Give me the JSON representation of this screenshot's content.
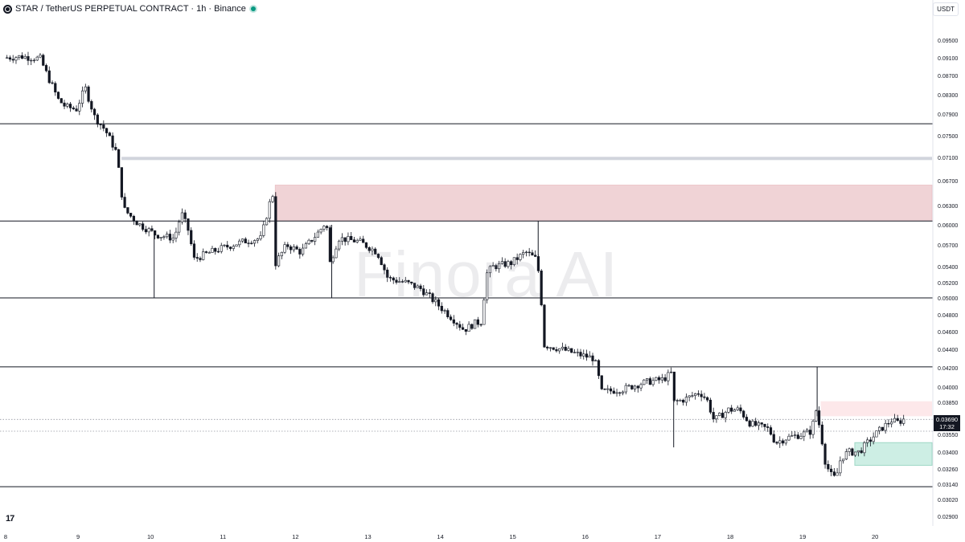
{
  "header": {
    "title": "STAR / TetherUS PERPETUAL CONTRACT · 1h · Binance"
  },
  "unit_button": "USDT",
  "watermark": "Finora AI",
  "logo_text": "17",
  "last_price": {
    "value": "0.03690",
    "countdown": "17:32"
  },
  "colors": {
    "up": "#131722",
    "down": "#131722",
    "supply_zone": "#f0d3d6",
    "light_supply_zone": "#fde8ea",
    "demand_zone": "#cdeee4",
    "demand_border": "#9fd8c6",
    "gray_band": "#d1d4dc",
    "live_dot": "#089981"
  },
  "chart_data": {
    "type": "candlestick",
    "title": "STAR / TetherUS PERPETUAL CONTRACT · 1h · Binance",
    "xlabel": "",
    "ylabel": "",
    "x_ticks": [
      "8",
      "9",
      "10",
      "11",
      "12",
      "13",
      "14",
      "15",
      "16",
      "17",
      "18",
      "19",
      "20"
    ],
    "y_ticks": [
      "0.09500",
      "0.09100",
      "0.08700",
      "0.08300",
      "0.07900",
      "0.07500",
      "0.07100",
      "0.06700",
      "0.06300",
      "0.06000",
      "0.05700",
      "0.05400",
      "0.05200",
      "0.05000",
      "0.04800",
      "0.04600",
      "0.04400",
      "0.04200",
      "0.04000",
      "0.03850",
      "0.03550",
      "0.03400",
      "0.03260",
      "0.03140",
      "0.03020",
      "0.02900"
    ],
    "horizontal_levels": [
      0.0772,
      0.0606,
      0.05,
      0.0421,
      0.0312
    ],
    "dotted_levels": [
      0.0369,
      0.0358
    ],
    "zones": [
      {
        "kind": "supply",
        "from_day": 11.72,
        "to_day": 20.82,
        "low": 0.0606,
        "high": 0.0663
      },
      {
        "kind": "gray-band",
        "from_day": 9.6,
        "to_day": 20.82,
        "low": 0.0708,
        "high": 0.0711
      },
      {
        "kind": "light-supply",
        "from_day": 19.25,
        "to_day": 20.82,
        "low": 0.0372,
        "high": 0.0386
      },
      {
        "kind": "demand",
        "from_day": 19.72,
        "to_day": 20.82,
        "low": 0.0329,
        "high": 0.0348
      }
    ],
    "wick_spikes": [
      {
        "day": 10.05,
        "low": 0.05,
        "high": 0.059
      },
      {
        "day": 12.5,
        "low": 0.05,
        "high": 0.06
      },
      {
        "day": 15.35,
        "low": 0.0555,
        "high": 0.0606
      },
      {
        "day": 17.22,
        "low": 0.0344,
        "high": 0.04
      },
      {
        "day": 19.2,
        "low": 0.0372,
        "high": 0.0421
      }
    ],
    "price_path": [
      [
        8.0,
        0.091
      ],
      [
        8.25,
        0.0913
      ],
      [
        8.5,
        0.0908
      ],
      [
        8.6,
        0.087
      ],
      [
        8.75,
        0.082
      ],
      [
        8.85,
        0.0805
      ],
      [
        9.0,
        0.08
      ],
      [
        9.12,
        0.0845
      ],
      [
        9.25,
        0.0785
      ],
      [
        9.4,
        0.076
      ],
      [
        9.55,
        0.072
      ],
      [
        9.65,
        0.0625
      ],
      [
        9.85,
        0.0602
      ],
      [
        10.1,
        0.0585
      ],
      [
        10.35,
        0.058
      ],
      [
        10.45,
        0.0618
      ],
      [
        10.55,
        0.059
      ],
      [
        10.62,
        0.055
      ],
      [
        10.8,
        0.0558
      ],
      [
        11.0,
        0.0565
      ],
      [
        11.3,
        0.0575
      ],
      [
        11.55,
        0.058
      ],
      [
        11.68,
        0.064
      ],
      [
        11.72,
        0.065
      ],
      [
        11.75,
        0.0545
      ],
      [
        11.9,
        0.057
      ],
      [
        12.1,
        0.056
      ],
      [
        12.35,
        0.059
      ],
      [
        12.45,
        0.0605
      ],
      [
        12.5,
        0.0545
      ],
      [
        12.62,
        0.058
      ],
      [
        12.9,
        0.0575
      ],
      [
        13.15,
        0.056
      ],
      [
        13.3,
        0.0525
      ],
      [
        13.55,
        0.052
      ],
      [
        13.75,
        0.0512
      ],
      [
        13.95,
        0.0495
      ],
      [
        14.2,
        0.0475
      ],
      [
        14.35,
        0.0462
      ],
      [
        14.5,
        0.047
      ],
      [
        14.6,
        0.0472
      ],
      [
        14.65,
        0.053
      ],
      [
        14.75,
        0.054
      ],
      [
        15.0,
        0.0545
      ],
      [
        15.2,
        0.056
      ],
      [
        15.35,
        0.055
      ],
      [
        15.4,
        0.052
      ],
      [
        15.45,
        0.0445
      ],
      [
        15.7,
        0.044
      ],
      [
        15.9,
        0.0435
      ],
      [
        16.15,
        0.043
      ],
      [
        16.25,
        0.0395
      ],
      [
        16.55,
        0.0398
      ],
      [
        16.85,
        0.0405
      ],
      [
        17.1,
        0.0408
      ],
      [
        17.22,
        0.0415
      ],
      [
        17.25,
        0.0385
      ],
      [
        17.4,
        0.0388
      ],
      [
        17.6,
        0.0395
      ],
      [
        17.7,
        0.0388
      ],
      [
        17.8,
        0.0368
      ],
      [
        18.0,
        0.0378
      ],
      [
        18.15,
        0.0378
      ],
      [
        18.3,
        0.0365
      ],
      [
        18.55,
        0.036
      ],
      [
        18.65,
        0.0348
      ],
      [
        18.8,
        0.0352
      ],
      [
        19.0,
        0.0355
      ],
      [
        19.15,
        0.0358
      ],
      [
        19.2,
        0.038
      ],
      [
        19.28,
        0.0355
      ],
      [
        19.32,
        0.0335
      ],
      [
        19.4,
        0.0322
      ],
      [
        19.48,
        0.0318
      ],
      [
        19.55,
        0.0335
      ],
      [
        19.65,
        0.034
      ],
      [
        19.8,
        0.034
      ],
      [
        19.95,
        0.035
      ],
      [
        20.1,
        0.036
      ],
      [
        20.25,
        0.0368
      ],
      [
        20.35,
        0.0366
      ],
      [
        20.4,
        0.0369
      ]
    ]
  }
}
